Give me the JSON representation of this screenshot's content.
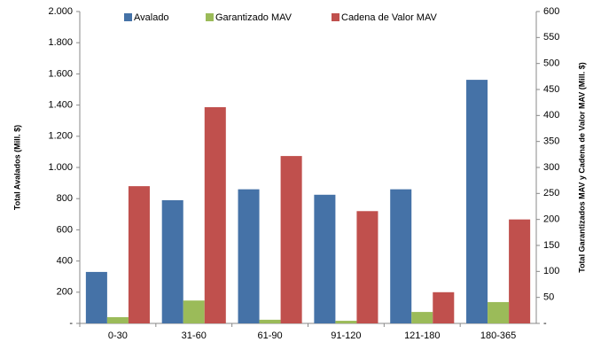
{
  "chart_data": {
    "type": "bar",
    "categories": [
      "0-30",
      "31-60",
      "61-90",
      "91-120",
      "121-180",
      "180-365"
    ],
    "ylabel": "Total Avalados (Mill. $)",
    "y2label": "Total Garantizados MAV y Cadena de Valor MAV (Mill. $)",
    "series": [
      {
        "name": "Avalado",
        "color": "#4572a7",
        "values": [
          330,
          790,
          860,
          825,
          860,
          1562
        ]
      },
      {
        "name": "Garantizado MAV",
        "color": "#9bbb59",
        "axis": "y2",
        "values": [
          12,
          44,
          7,
          5,
          22,
          41
        ]
      },
      {
        "name": "Cadena de Valor MAV",
        "color": "#c0504d",
        "axis": "y2",
        "values": [
          264,
          416,
          322,
          216,
          60,
          200
        ]
      }
    ],
    "ylim": [
      0,
      2000
    ],
    "yticks": [
      {
        "value": 0,
        "label": "-"
      },
      200,
      400,
      600,
      800,
      {
        "value": 1000,
        "label": "1.000"
      },
      {
        "value": 1200,
        "label": "1.200"
      },
      {
        "value": 1400,
        "label": "1.400"
      },
      {
        "value": 1600,
        "label": "1.600"
      },
      {
        "value": 1800,
        "label": "1.800"
      },
      {
        "value": 2000,
        "label": "2.000"
      }
    ],
    "y2lim": [
      0,
      600
    ],
    "y2ticks": [
      {
        "value": 0,
        "label": "-"
      },
      50,
      100,
      150,
      200,
      250,
      300,
      350,
      400,
      450,
      500,
      550,
      600
    ],
    "legend": "top"
  }
}
